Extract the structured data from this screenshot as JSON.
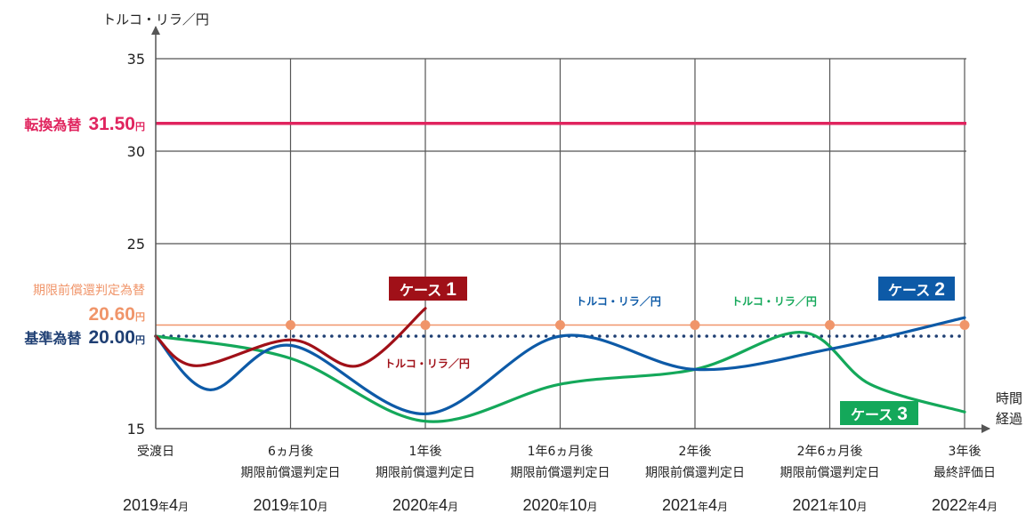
{
  "chart_data": {
    "type": "line",
    "ylabel": "トルコ・リラ／円",
    "xlabel_lines": [
      "時間",
      "経過"
    ],
    "ylim": [
      15,
      35
    ],
    "yticks": [
      35,
      30,
      25,
      15
    ],
    "x_ticks": [
      {
        "l1": "受渡日",
        "l2": "",
        "date_y": "2019",
        "date_y_unit": "年",
        "date_m": "4",
        "date_m_unit": "月"
      },
      {
        "l1": "6ヵ月後",
        "l2": "期限前償還判定日",
        "date_y": "2019",
        "date_y_unit": "年",
        "date_m": "10",
        "date_m_unit": "月"
      },
      {
        "l1": "1年後",
        "l2": "期限前償還判定日",
        "date_y": "2020",
        "date_y_unit": "年",
        "date_m": "4",
        "date_m_unit": "月"
      },
      {
        "l1": "1年6ヵ月後",
        "l2": "期限前償還判定日",
        "date_y": "2020",
        "date_y_unit": "年",
        "date_m": "10",
        "date_m_unit": "月"
      },
      {
        "l1": "2年後",
        "l2": "期限前償還判定日",
        "date_y": "2021",
        "date_y_unit": "年",
        "date_m": "4",
        "date_m_unit": "月"
      },
      {
        "l1": "2年6ヵ月後",
        "l2": "期限前償還判定日",
        "date_y": "2021",
        "date_y_unit": "年",
        "date_m": "10",
        "date_m_unit": "月"
      },
      {
        "l1": "3年後",
        "l2": "最終評価日",
        "date_y": "2022",
        "date_y_unit": "年",
        "date_m": "4",
        "date_m_unit": "月"
      }
    ],
    "reference_lines": [
      {
        "key": "conversion",
        "label": "転換為替",
        "value_text": "31.50",
        "unit": "円",
        "value": 31.5,
        "color": "#e0245e",
        "style": "solid"
      },
      {
        "key": "early_redemption",
        "label": "期限前償還判定為替",
        "value_text": "20.60",
        "unit": "円",
        "value": 20.6,
        "color": "#f0956a",
        "style": "solid"
      },
      {
        "key": "base",
        "label": "基準為替",
        "value_text": "20.00",
        "unit": "円",
        "value": 20.0,
        "color": "#1f3f73",
        "style": "dotted"
      }
    ],
    "early_redemption_markers": [
      1,
      2,
      3,
      4,
      5,
      6
    ],
    "series": [
      {
        "key": "case1",
        "name": "ケース１",
        "color": "#a01018",
        "series_label": "トルコ・リラ／円",
        "badge_label": "ケース",
        "badge_num": "1",
        "points": [
          [
            0,
            20.0
          ],
          [
            0.3,
            18.4
          ],
          [
            1,
            19.8
          ],
          [
            1.5,
            18.4
          ],
          [
            2,
            21.5
          ]
        ]
      },
      {
        "key": "case2",
        "name": "ケース２",
        "color": "#0d5aa7",
        "series_label": "トルコ・リラ／円",
        "badge_label": "ケース",
        "badge_num": "2",
        "points": [
          [
            0,
            20.0
          ],
          [
            0.4,
            17.1
          ],
          [
            1,
            19.5
          ],
          [
            2,
            15.8
          ],
          [
            3,
            20.0
          ],
          [
            4,
            18.2
          ],
          [
            5,
            19.3
          ],
          [
            6,
            21.0
          ]
        ]
      },
      {
        "key": "case3",
        "name": "ケース３",
        "color": "#14a85a",
        "series_label": "トルコ・リラ／円",
        "badge_label": "ケース",
        "badge_num": "3",
        "points": [
          [
            0,
            20.0
          ],
          [
            1,
            18.8
          ],
          [
            2,
            15.4
          ],
          [
            3,
            17.4
          ],
          [
            4,
            18.2
          ],
          [
            4.8,
            20.2
          ],
          [
            5.3,
            17.4
          ],
          [
            6,
            15.9
          ]
        ]
      }
    ]
  }
}
